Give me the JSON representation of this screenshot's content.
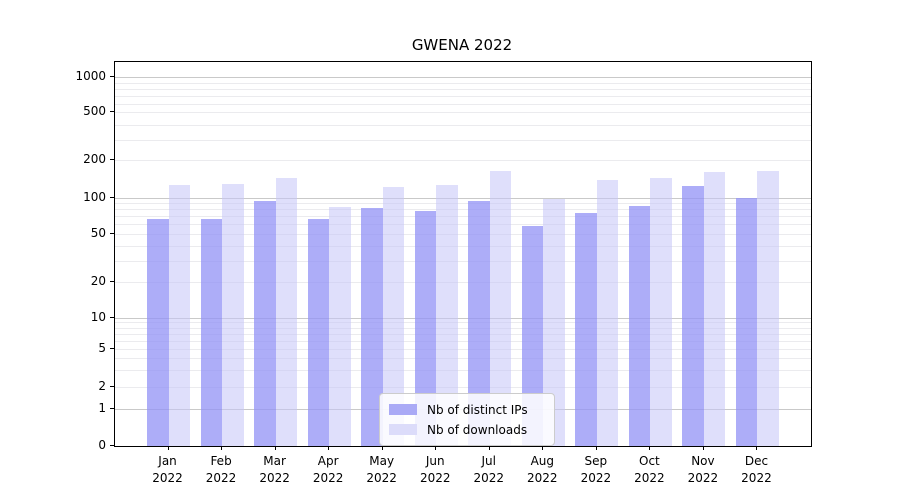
{
  "chart_data": {
    "type": "bar",
    "title": "GWENA 2022",
    "categories": [
      "Jan 2022",
      "Feb 2022",
      "Mar 2022",
      "Apr 2022",
      "May 2022",
      "Jun 2022",
      "Jul 2022",
      "Aug 2022",
      "Sep 2022",
      "Oct 2022",
      "Nov 2022",
      "Dec 2022"
    ],
    "series": [
      {
        "name": "Nb of distinct IPs",
        "color": "#aaaaf6",
        "color_rgba": "rgba(145,145,245,0.75)",
        "values": [
          67,
          66,
          93,
          66,
          82,
          78,
          93,
          58,
          74,
          85,
          125,
          99
        ]
      },
      {
        "name": "Nb of downloads",
        "color": "#dcdcfa",
        "color_rgba": "rgba(197,197,248,0.55)",
        "values": [
          127,
          129,
          145,
          83,
          123,
          128,
          166,
          98,
          141,
          146,
          164,
          167
        ]
      }
    ],
    "yscale": "symlog",
    "ylim": [
      0,
      1000
    ],
    "ytick_labels": [
      "1000",
      "500",
      "200",
      "100",
      "50",
      "20",
      "10",
      "5",
      "2",
      "1",
      "0"
    ],
    "grid": true,
    "legend_position": "lower center",
    "axis_color": "#000000",
    "background_color": "#ffffff"
  }
}
